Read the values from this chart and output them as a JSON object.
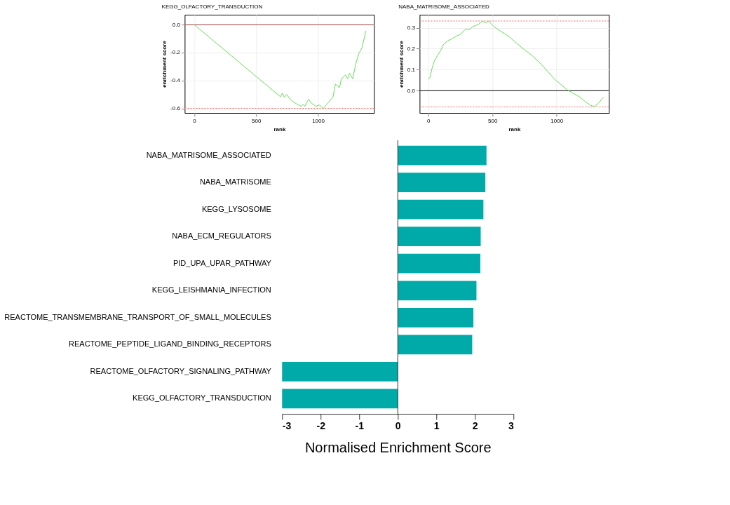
{
  "chart_data": [
    {
      "type": "line",
      "title": "KEGG_OLFACTORY_TRANSDUCTION",
      "xlabel": "rank",
      "ylabel": "enrichment score",
      "xlim": [
        -77,
        1452
      ],
      "ylim": [
        -0.632,
        0.071
      ],
      "xticks": [
        0,
        500,
        {
          "value": 1000,
          "label": "1000"
        }
      ],
      "yticks": [
        {
          "value": 0,
          "label": "0.0"
        },
        -0.2,
        -0.4,
        -0.6
      ],
      "grid": true,
      "line_style": "solid",
      "series": [
        {
          "color": "#66dd55",
          "x": [
            0,
            696,
            712,
            727,
            747,
            780,
            830,
            865,
            878,
            893,
            913,
            924,
            950,
            985,
            1010,
            1030,
            1043,
            1060,
            1080,
            1100,
            1120,
            1140,
            1173,
            1189,
            1222,
            1238,
            1255,
            1280,
            1304,
            1329,
            1354,
            1378,
            1386
          ],
          "values": [
            0,
            -0.516,
            -0.49,
            -0.52,
            -0.5,
            -0.54,
            -0.57,
            -0.585,
            -0.57,
            -0.585,
            -0.55,
            -0.535,
            -0.565,
            -0.585,
            -0.575,
            -0.59,
            -0.6,
            -0.58,
            -0.56,
            -0.54,
            -0.52,
            -0.426,
            -0.45,
            -0.387,
            -0.36,
            -0.387,
            -0.348,
            -0.387,
            -0.284,
            -0.206,
            -0.168,
            -0.077,
            -0.045
          ]
        }
      ],
      "ref_lines": [
        {
          "axis": "y",
          "value": 0,
          "color": "#a04040",
          "line_style": "solid"
        },
        {
          "axis": "y",
          "value": -0.6,
          "color": "#ff6666",
          "line_style": "dotted"
        }
      ]
    },
    {
      "type": "line",
      "title": "NABA_MATRISOME_ASSOCIATED",
      "xlabel": "rank",
      "ylabel": "enrichment score",
      "xlim": [
        -68,
        1408
      ],
      "ylim": [
        -0.106,
        0.362
      ],
      "xticks": [
        0,
        500,
        {
          "value": 1000,
          "label": "1000"
        }
      ],
      "yticks": [
        {
          "value": 0,
          "label": "0.0"
        },
        0.1,
        0.2,
        0.3
      ],
      "grid": true,
      "line_style": "solid",
      "series": [
        {
          "color": "#66dd55",
          "x": [
            0,
            13,
            29,
            46,
            70,
            95,
            119,
            152,
            184,
            217,
            250,
            290,
            315,
            348,
            388,
            421,
            445,
            470,
            510,
            560,
            625,
            674,
            739,
            805,
            870,
            935,
            984,
            1033,
            1082,
            1131,
            1180,
            1229,
            1261,
            1294,
            1326,
            1367
          ],
          "values": [
            0.055,
            0.064,
            0.106,
            0.14,
            0.166,
            0.191,
            0.221,
            0.238,
            0.247,
            0.26,
            0.268,
            0.294,
            0.289,
            0.306,
            0.315,
            0.332,
            0.323,
            0.332,
            0.306,
            0.285,
            0.26,
            0.234,
            0.2,
            0.17,
            0.132,
            0.089,
            0.055,
            0.03,
            0.004,
            -0.013,
            -0.03,
            -0.055,
            -0.068,
            -0.077,
            -0.06,
            -0.03
          ]
        }
      ],
      "ref_lines": [
        {
          "axis": "y",
          "value": 0,
          "color": "#000000",
          "line_style": "solid"
        },
        {
          "axis": "y",
          "value": 0.332,
          "color": "#ff6666",
          "line_style": "dotted"
        },
        {
          "axis": "y",
          "value": -0.077,
          "color": "#ff6666",
          "line_style": "dotted"
        }
      ]
    },
    {
      "type": "bar",
      "orientation": "horizontal",
      "xlabel": "Normalised Enrichment Score",
      "xlim": [
        -3,
        3
      ],
      "xticks": [
        -3,
        -2,
        -1,
        0,
        1,
        2,
        3
      ],
      "grid": false,
      "color": "#00aaa8",
      "ref_lines": [
        {
          "axis": "x",
          "value": 0,
          "color": "#333333",
          "line_style": "solid"
        }
      ],
      "categories": [
        "NABA_MATRISOME_ASSOCIATED",
        "NABA_MATRISOME",
        "KEGG_LYSOSOME",
        "NABA_ECM_REGULATORS",
        "PID_UPA_UPAR_PATHWAY",
        "KEGG_LEISHMANIA_INFECTION",
        "REACTOME_TRANSMEMBRANE_TRANSPORT_OF_SMALL_MOLECULES",
        "REACTOME_PEPTIDE_LIGAND_BINDING_RECEPTORS",
        "REACTOME_OLFACTORY_SIGNALING_PATHWAY",
        "KEGG_OLFACTORY_TRANSDUCTION"
      ],
      "values": [
        2.3,
        2.27,
        2.22,
        2.15,
        2.14,
        2.04,
        1.96,
        1.93,
        -3.0,
        -3.0
      ]
    }
  ]
}
